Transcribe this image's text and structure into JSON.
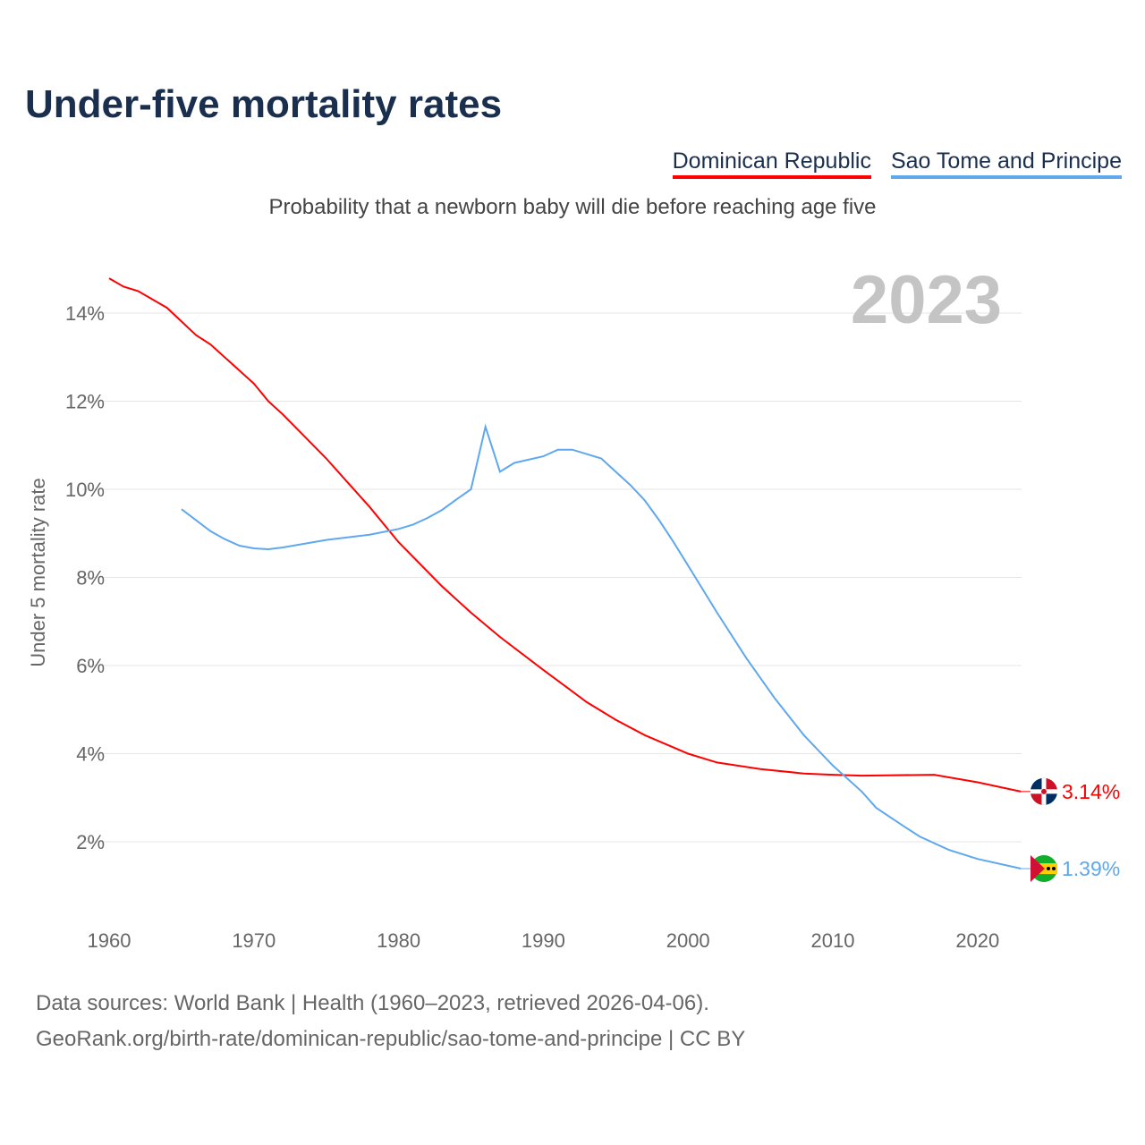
{
  "chart_data": {
    "type": "line",
    "title": "Under-five mortality rates",
    "subtitle": "Probability that a newborn baby will die before reaching age five",
    "ylabel": "Under 5 mortality rate",
    "xlabel": "",
    "year_label": "2023",
    "xlim": [
      1960,
      2023
    ],
    "ylim": [
      0,
      15
    ],
    "yticks": [
      2,
      4,
      6,
      8,
      10,
      12,
      14
    ],
    "ytick_labels": [
      "2%",
      "4%",
      "6%",
      "8%",
      "10%",
      "12%",
      "14%"
    ],
    "xticks": [
      1960,
      1970,
      1980,
      1990,
      2000,
      2010,
      2020
    ],
    "xtick_labels": [
      "1960",
      "1970",
      "1980",
      "1990",
      "2000",
      "2010",
      "2020"
    ],
    "grid": true,
    "legend_position": "top-right",
    "series": [
      {
        "name": "Dominican Republic",
        "color": "#ff0000",
        "end_label": "3.14%",
        "x": [
          1960,
          1961,
          1962,
          1964,
          1966,
          1967,
          1970,
          1971,
          1972,
          1975,
          1978,
          1980,
          1983,
          1985,
          1987,
          1990,
          1993,
          1995,
          1997,
          2000,
          2002,
          2005,
          2008,
          2010,
          2012,
          2017,
          2020,
          2023
        ],
        "y": [
          14.79,
          14.6,
          14.5,
          14.12,
          13.5,
          13.29,
          12.4,
          12.0,
          11.7,
          10.7,
          9.6,
          8.8,
          7.8,
          7.2,
          6.65,
          5.9,
          5.17,
          4.77,
          4.42,
          4.0,
          3.8,
          3.65,
          3.55,
          3.52,
          3.5,
          3.52,
          3.35,
          3.14
        ]
      },
      {
        "name": "Sao Tome and Principe",
        "color": "#5fa8ee",
        "end_label": "1.39%",
        "x": [
          1965,
          1967,
          1968,
          1969,
          1970,
          1971,
          1972,
          1975,
          1978,
          1980,
          1981,
          1982,
          1983,
          1984,
          1985,
          1986,
          1987,
          1988,
          1990,
          1991,
          1992,
          1994,
          1996,
          1997,
          1998,
          1999,
          2000,
          2002,
          2004,
          2006,
          2008,
          2010,
          2012,
          2013,
          2015,
          2016,
          2018,
          2020,
          2023
        ],
        "y": [
          9.55,
          9.05,
          8.87,
          8.72,
          8.66,
          8.64,
          8.68,
          8.85,
          8.97,
          9.1,
          9.2,
          9.35,
          9.53,
          9.77,
          10.0,
          11.42,
          10.4,
          10.6,
          10.75,
          10.9,
          10.9,
          10.7,
          10.1,
          9.75,
          9.3,
          8.8,
          8.27,
          7.2,
          6.18,
          5.25,
          4.42,
          3.73,
          3.14,
          2.77,
          2.33,
          2.12,
          1.82,
          1.61,
          1.39
        ]
      }
    ]
  },
  "footer": {
    "source": "Data sources: World Bank | Health (1960–2023, retrieved 2026-04-06).",
    "url": "GeoRank.org/birth-rate/dominican-republic/sao-tome-and-principe | CC BY"
  }
}
